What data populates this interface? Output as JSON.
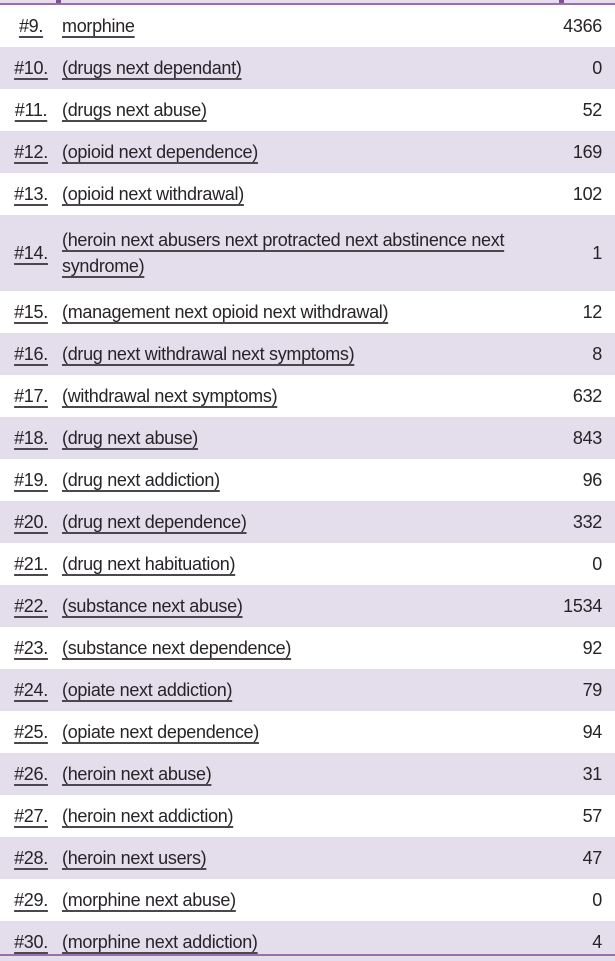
{
  "table": {
    "rows": [
      {
        "id": "#9.",
        "term": "morphine",
        "count": "4366"
      },
      {
        "id": "#10.",
        "term": "(drugs next dependant)",
        "count": "0"
      },
      {
        "id": "#11.",
        "term": "(drugs next abuse)",
        "count": "52"
      },
      {
        "id": "#12.",
        "term": "(opioid next dependence)",
        "count": "169"
      },
      {
        "id": "#13.",
        "term": "(opioid next withdrawal)",
        "count": "102"
      },
      {
        "id": "#14.",
        "term": "(heroin next abusers next protracted next abstinence next syndrome)",
        "count": "1"
      },
      {
        "id": "#15.",
        "term": "(management next opioid next withdrawal)",
        "count": "12"
      },
      {
        "id": "#16.",
        "term": "(drug next withdrawal next symptoms)",
        "count": "8"
      },
      {
        "id": "#17.",
        "term": "(withdrawal next symptoms)",
        "count": "632"
      },
      {
        "id": "#18.",
        "term": "(drug next abuse)",
        "count": "843"
      },
      {
        "id": "#19.",
        "term": "(drug next addiction)",
        "count": "96"
      },
      {
        "id": "#20.",
        "term": "(drug next dependence)",
        "count": "332"
      },
      {
        "id": "#21.",
        "term": "(drug next habituation)",
        "count": "0"
      },
      {
        "id": "#22.",
        "term": "(substance next abuse)",
        "count": "1534"
      },
      {
        "id": "#23.",
        "term": "(substance next dependence)",
        "count": "92"
      },
      {
        "id": "#24.",
        "term": "(opiate next addiction)",
        "count": "79"
      },
      {
        "id": "#25.",
        "term": "(opiate next dependence)",
        "count": "94"
      },
      {
        "id": "#26.",
        "term": "(heroin next abuse)",
        "count": "31"
      },
      {
        "id": "#27.",
        "term": "(heroin next addiction)",
        "count": "57"
      },
      {
        "id": "#28.",
        "term": "(heroin next users)",
        "count": "47"
      },
      {
        "id": "#29.",
        "term": "(morphine next abuse)",
        "count": "0"
      },
      {
        "id": "#30.",
        "term": "(morphine next addiction)",
        "count": "4"
      }
    ]
  },
  "colors": {
    "stripe": "#e4ddec",
    "rule": "#9b6fae",
    "rule_tick": "#7a5394",
    "text": "#272327",
    "underline": "#4a474d"
  }
}
